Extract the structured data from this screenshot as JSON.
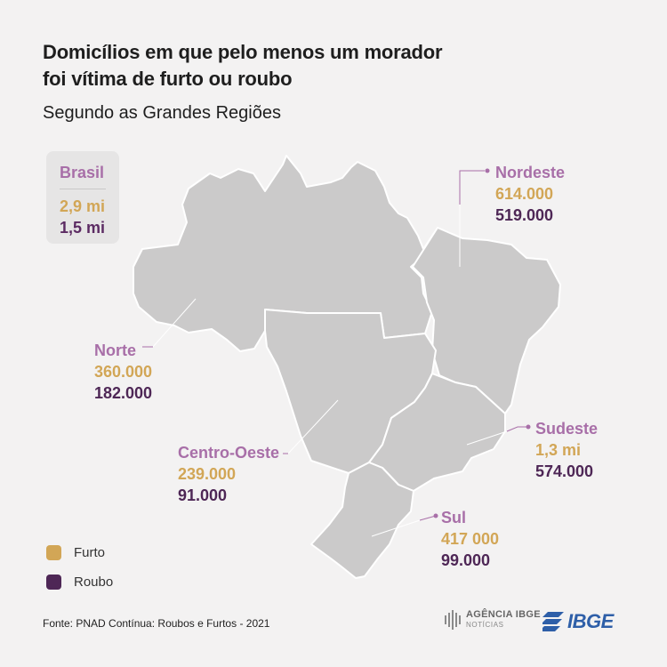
{
  "title": {
    "line1": "Domicílios em que pelo menos um morador",
    "line2": "foi vítima de furto ou roubo"
  },
  "subtitle": "Segundo as Grandes Regiões",
  "colors": {
    "furto": "#d2a656",
    "roubo": "#4e2756",
    "region_name": "#a86fa8",
    "map_fill": "#cbcaca",
    "map_border": "#ffffff",
    "leader_line": "#a86fa8"
  },
  "brasil": {
    "label": "Brasil",
    "furto": "2,9 mi",
    "roubo": "1,5 mi"
  },
  "regions": {
    "nordeste": {
      "name": "Nordeste",
      "furto": "614.000",
      "roubo": "519.000"
    },
    "norte": {
      "name": "Norte",
      "furto": "360.000",
      "roubo": "182.000"
    },
    "centro_oeste": {
      "name": "Centro-Oeste",
      "furto": "239.000",
      "roubo": "91.000"
    },
    "sudeste": {
      "name": "Sudeste",
      "furto": "1,3 mi",
      "roubo": "574.000"
    },
    "sul": {
      "name": "Sul",
      "furto": "417 000",
      "roubo": "99.000"
    }
  },
  "legend": {
    "furto": "Furto",
    "roubo": "Roubo"
  },
  "source": "Fonte: PNAD Contínua: Roubos e Furtos - 2021",
  "logos": {
    "agencia_line1": "AGÊNCIA IBGE",
    "agencia_line2": "NOTÍCIAS",
    "ibge": "IBGE"
  }
}
